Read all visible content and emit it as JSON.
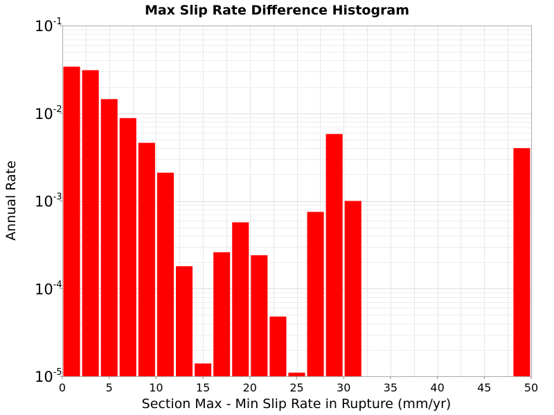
{
  "chart_data": {
    "type": "bar",
    "title": "Max Slip Rate Difference Histogram",
    "xlabel": "Section Max - Min Slip Rate in Rupture (mm/yr)",
    "ylabel": "Annual Rate",
    "xlim": [
      0,
      50
    ],
    "ylim": [
      1e-05,
      0.1
    ],
    "yscale": "log",
    "bin_width": 2,
    "x_ticks": [
      0,
      5,
      10,
      15,
      20,
      25,
      30,
      35,
      40,
      45,
      50
    ],
    "y_ticks": [
      {
        "value": 1e-05,
        "base": "10",
        "exp": "-5"
      },
      {
        "value": 0.0001,
        "base": "10",
        "exp": "-4"
      },
      {
        "value": 0.001,
        "base": "10",
        "exp": "-3"
      },
      {
        "value": 0.01,
        "base": "10",
        "exp": "-2"
      },
      {
        "value": 0.1,
        "base": "10",
        "exp": "-1"
      }
    ],
    "grid": true,
    "bar_color": "#ff0000",
    "bins": [
      {
        "x": 1,
        "value": 0.034
      },
      {
        "x": 3,
        "value": 0.031
      },
      {
        "x": 5,
        "value": 0.0145
      },
      {
        "x": 7,
        "value": 0.0088
      },
      {
        "x": 9,
        "value": 0.0046
      },
      {
        "x": 11,
        "value": 0.0021
      },
      {
        "x": 13,
        "value": 0.00018
      },
      {
        "x": 15,
        "value": 1.4e-05
      },
      {
        "x": 17,
        "value": 0.00026
      },
      {
        "x": 19,
        "value": 0.00057
      },
      {
        "x": 21,
        "value": 0.00024
      },
      {
        "x": 23,
        "value": 4.8e-05
      },
      {
        "x": 25,
        "value": 1.1e-05
      },
      {
        "x": 27,
        "value": 0.00075
      },
      {
        "x": 29,
        "value": 0.0058
      },
      {
        "x": 31,
        "value": 0.001
      },
      {
        "x": 49,
        "value": 0.004
      }
    ]
  }
}
